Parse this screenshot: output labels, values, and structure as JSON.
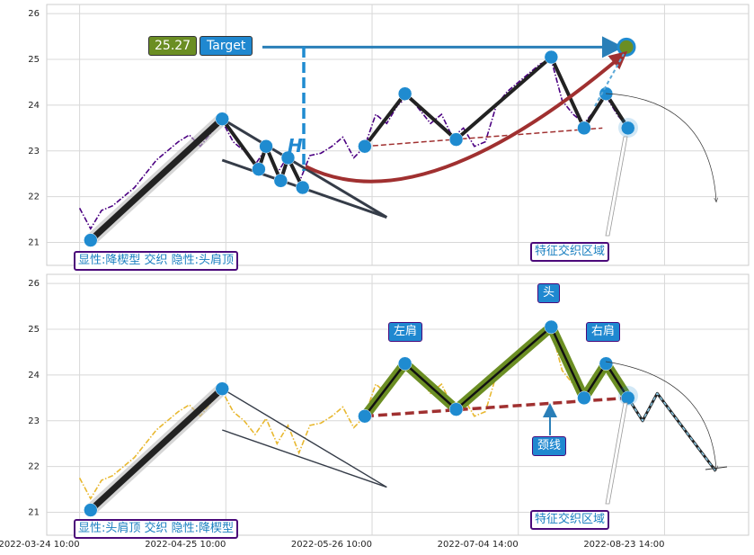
{
  "chart_data": [
    {
      "type": "line",
      "x": [
        0,
        3,
        6,
        9,
        12,
        15,
        18,
        21,
        24,
        27,
        30,
        33,
        36,
        39,
        42,
        45,
        48,
        51,
        54,
        57,
        60,
        63,
        66,
        69,
        72,
        75,
        78,
        81,
        84,
        87,
        90,
        93,
        96,
        99,
        102,
        105,
        108,
        111,
        114,
        117,
        120,
        123,
        126,
        129,
        132,
        135,
        138,
        141,
        144,
        147,
        150
      ],
      "values": [
        21.75,
        21.3,
        21.7,
        21.8,
        22.0,
        22.2,
        22.5,
        22.8,
        23.0,
        23.2,
        23.35,
        23.1,
        23.4,
        23.65,
        23.2,
        23.0,
        22.7,
        23.05,
        22.5,
        22.9,
        22.3,
        22.9,
        22.95,
        23.1,
        23.3,
        22.85,
        23.1,
        23.8,
        23.6,
        24.0,
        24.2,
        23.9,
        23.6,
        23.8,
        23.3,
        23.5,
        23.1,
        23.2,
        24.0,
        24.3,
        24.5,
        24.7,
        24.9,
        25.0,
        24.1,
        23.8,
        23.6,
        23.9,
        24.2,
        23.8,
        23.5
      ],
      "color": "#4b0082",
      "line_style": "dashdot",
      "xlim": [
        -9,
        183
      ],
      "ylim": [
        20.5,
        26.2
      ],
      "yticks": [
        21,
        22,
        23,
        24,
        25,
        26
      ],
      "xticks": [
        0,
        40,
        80,
        120,
        160
      ],
      "grid": true,
      "segments": [
        {
          "style": "thick",
          "x": [
            3,
            39
          ],
          "values": [
            21.05,
            23.7
          ]
        },
        {
          "style": "medium",
          "x": [
            39,
            49,
            51,
            55,
            57,
            61
          ],
          "values": [
            23.7,
            22.6,
            23.1,
            22.35,
            22.85,
            22.2
          ]
        },
        {
          "style": "medium",
          "x": [
            78,
            89,
            103,
            129,
            138,
            144,
            150
          ],
          "values": [
            23.1,
            24.25,
            23.25,
            25.05,
            23.5,
            24.25,
            23.5
          ]
        },
        {
          "style": "wedge",
          "x": [
            39,
            84
          ],
          "values": [
            23.7,
            21.55
          ]
        },
        {
          "style": "wedge",
          "x": [
            39,
            84
          ],
          "values": [
            22.8,
            21.55
          ]
        },
        {
          "style": "neck",
          "x": [
            78,
            143
          ],
          "values": [
            23.1,
            23.5
          ]
        }
      ],
      "points": {
        "x": [
          3,
          39,
          49,
          51,
          55,
          57,
          61,
          78,
          89,
          103,
          129,
          138,
          144,
          150
        ],
        "values": [
          21.05,
          23.7,
          22.6,
          23.1,
          22.35,
          22.85,
          22.2,
          23.1,
          24.25,
          23.25,
          25.05,
          23.5,
          24.25,
          23.5
        ]
      },
      "target": 25.27,
      "target_label": "Target",
      "target_marker": "H",
      "annotations": [
        "显性:降楔型 交织 隐性:头肩顶",
        "特征交织区域"
      ]
    },
    {
      "type": "line",
      "x": [
        0,
        3,
        6,
        9,
        12,
        15,
        18,
        21,
        24,
        27,
        30,
        33,
        36,
        39,
        42,
        45,
        48,
        51,
        54,
        57,
        60,
        63,
        66,
        69,
        72,
        75,
        78,
        81,
        84,
        87,
        90,
        93,
        96,
        99,
        102,
        105,
        108,
        111,
        114,
        117,
        120,
        123,
        126,
        129,
        132,
        135,
        138,
        141,
        144,
        147,
        150
      ],
      "values": [
        21.75,
        21.3,
        21.7,
        21.8,
        22.0,
        22.2,
        22.5,
        22.8,
        23.0,
        23.2,
        23.35,
        23.1,
        23.4,
        23.65,
        23.2,
        23.0,
        22.7,
        23.05,
        22.5,
        22.9,
        22.3,
        22.9,
        22.95,
        23.1,
        23.3,
        22.85,
        23.1,
        23.8,
        23.6,
        24.0,
        24.2,
        23.9,
        23.6,
        23.8,
        23.3,
        23.5,
        23.1,
        23.2,
        24.0,
        24.3,
        24.5,
        24.7,
        24.9,
        25.0,
        24.1,
        23.8,
        23.6,
        23.9,
        24.2,
        23.8,
        23.5
      ],
      "color": "#e8b830",
      "line_style": "dashdot",
      "xlim": [
        -9,
        183
      ],
      "ylim": [
        20.5,
        26.2
      ],
      "yticks": [
        21,
        22,
        23,
        24,
        25,
        26
      ],
      "xticks": [
        {
          "value": 0,
          "label": "2022-03-24 10:00"
        },
        {
          "value": 40,
          "label": "2022-04-25 10:00"
        },
        {
          "value": 80,
          "label": "2022-05-26 10:00"
        },
        {
          "value": 120,
          "label": "2022-07-04 14:00"
        },
        {
          "value": 160,
          "label": "2022-08-23 14:00"
        }
      ],
      "grid": true,
      "segments": [
        {
          "style": "thick",
          "x": [
            3,
            39
          ],
          "values": [
            21.05,
            23.7
          ]
        },
        {
          "style": "thinwedge",
          "x": [
            39,
            84
          ],
          "values": [
            23.7,
            21.55
          ]
        },
        {
          "style": "thinwedge",
          "x": [
            39,
            84
          ],
          "values": [
            22.8,
            21.55
          ]
        },
        {
          "style": "hs",
          "x": [
            78,
            89,
            103,
            129,
            138,
            144,
            150
          ],
          "values": [
            23.1,
            24.25,
            23.25,
            25.05,
            23.5,
            24.25,
            23.5
          ]
        },
        {
          "style": "neck2",
          "x": [
            78,
            150
          ],
          "values": [
            23.1,
            23.5
          ]
        },
        {
          "style": "proj",
          "x": [
            150,
            154,
            158,
            174
          ],
          "values": [
            23.5,
            23.0,
            23.6,
            21.9
          ]
        }
      ],
      "points": {
        "x": [
          3,
          39,
          78,
          89,
          103,
          129,
          138,
          144,
          150
        ],
        "values": [
          21.05,
          23.7,
          23.1,
          24.25,
          23.25,
          25.05,
          23.5,
          24.25,
          23.5
        ]
      },
      "labels": [
        "左肩",
        "头",
        "右肩",
        "颈线"
      ],
      "annotations": [
        "显性:头肩顶 交织 隐性:降楔型",
        "特征交织区域"
      ]
    }
  ]
}
